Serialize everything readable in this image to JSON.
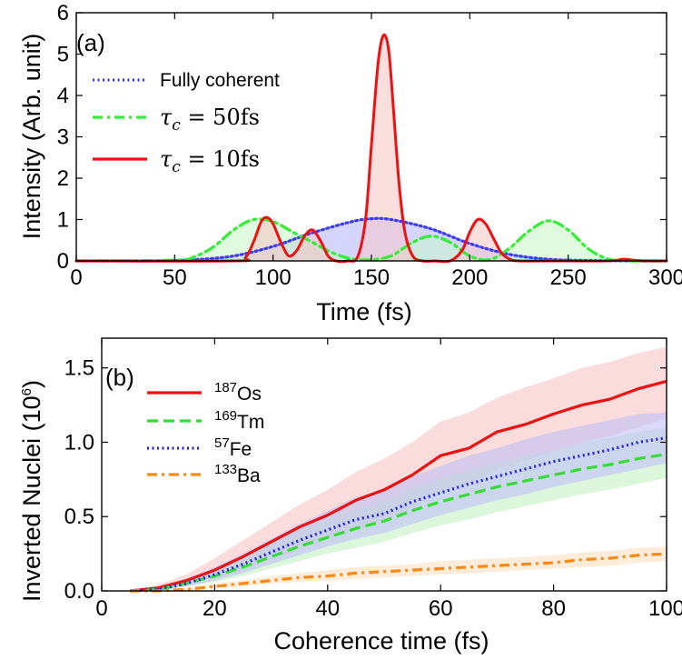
{
  "chart_data": [
    {
      "type": "area",
      "panel_label": "(a)",
      "xlabel": "Time (fs)",
      "ylabel": "Intensity (Arb. unit)",
      "xlim": [
        0,
        300
      ],
      "ylim": [
        0,
        6
      ],
      "xticks": [
        0,
        50,
        100,
        150,
        200,
        250,
        300
      ],
      "yticks": [
        0,
        1,
        2,
        3,
        4,
        5,
        6
      ],
      "legend_position": "top-left",
      "grid": false,
      "series": [
        {
          "name": "Fully coherent",
          "color": "#3b3bff",
          "fill": "#b3b3ff",
          "style": "dotted",
          "x": [
            0,
            20,
            40,
            60,
            80,
            100,
            120,
            140,
            150,
            160,
            180,
            200,
            220,
            240,
            260,
            280,
            300
          ],
          "y": [
            0.0,
            0.0,
            0.0,
            0.03,
            0.12,
            0.35,
            0.68,
            0.95,
            1.02,
            1.0,
            0.78,
            0.42,
            0.16,
            0.04,
            0.01,
            0.0,
            0.0
          ]
        },
        {
          "name": "τc = 50fs",
          "label_symbol": "τ",
          "label_sub": "c",
          "label_rest": " = 50fs",
          "color": "#33ee33",
          "fill": "#c4f5c4",
          "style": "dashdot",
          "x": [
            0,
            50,
            60,
            70,
            80,
            90,
            100,
            110,
            120,
            130,
            140,
            150,
            160,
            170,
            180,
            190,
            200,
            210,
            220,
            230,
            240,
            250,
            260,
            270,
            280,
            300
          ],
          "y": [
            0.0,
            0.02,
            0.1,
            0.35,
            0.75,
            1.0,
            0.95,
            0.7,
            0.45,
            0.2,
            0.05,
            0.03,
            0.12,
            0.42,
            0.6,
            0.45,
            0.12,
            0.03,
            0.3,
            0.72,
            0.97,
            0.75,
            0.3,
            0.05,
            0.0,
            0.0
          ]
        },
        {
          "name": "τc = 10fs",
          "label_symbol": "τ",
          "label_sub": "c",
          "label_rest": " = 10fs",
          "color": "#ee1111",
          "fill": "#f7c4c4",
          "style": "solid",
          "x": [
            0,
            80,
            86,
            90,
            94,
            97,
            100,
            104,
            108,
            112,
            116,
            120,
            124,
            128,
            132,
            138,
            143,
            147,
            150,
            153,
            155,
            157,
            159,
            161,
            164,
            167,
            171,
            176,
            182,
            190,
            196,
            200,
            204,
            208,
            212,
            216,
            220,
            225,
            240,
            270,
            278,
            283,
            290,
            300
          ],
          "y": [
            0.0,
            0.0,
            0.08,
            0.45,
            0.95,
            1.05,
            0.9,
            0.45,
            0.12,
            0.25,
            0.6,
            0.75,
            0.5,
            0.12,
            0.0,
            0.0,
            0.1,
            1.0,
            2.8,
            4.6,
            5.3,
            5.45,
            5.0,
            3.8,
            1.9,
            0.7,
            0.12,
            0.0,
            0.0,
            0.0,
            0.25,
            0.7,
            1.0,
            0.9,
            0.55,
            0.2,
            0.05,
            0.0,
            0.0,
            0.0,
            0.04,
            0.02,
            0.0,
            0.0
          ]
        }
      ]
    },
    {
      "type": "line",
      "panel_label": "(b)",
      "xlabel": "Coherence time (fs)",
      "ylabel_main": "Inverted Nuclei (10",
      "ylabel_sup": "6",
      "ylabel_end": ")",
      "xlim": [
        0,
        100
      ],
      "ylim": [
        0,
        1.7
      ],
      "xticks": [
        0,
        20,
        40,
        60,
        80,
        100
      ],
      "yticks": [
        0.0,
        0.5,
        1.0,
        1.5
      ],
      "ytick_labels": [
        "0.0",
        "0.5",
        "1.0",
        "1.5"
      ],
      "legend_position": "top-left",
      "grid": false,
      "x": [
        5,
        10,
        15,
        20,
        25,
        30,
        35,
        40,
        45,
        50,
        55,
        60,
        65,
        70,
        75,
        80,
        85,
        90,
        95,
        100
      ],
      "series": [
        {
          "name": "187Os",
          "label_sup": "187",
          "label_rest": "Os",
          "color": "#ee1111",
          "fill": "#f7c4c4",
          "style": "solid",
          "values": [
            0.0,
            0.02,
            0.07,
            0.14,
            0.23,
            0.33,
            0.43,
            0.51,
            0.61,
            0.68,
            0.78,
            0.91,
            0.96,
            1.07,
            1.12,
            1.19,
            1.25,
            1.29,
            1.36,
            1.41
          ],
          "band_upper": [
            0.0,
            0.04,
            0.11,
            0.22,
            0.34,
            0.46,
            0.58,
            0.68,
            0.8,
            0.89,
            1.0,
            1.14,
            1.2,
            1.3,
            1.37,
            1.43,
            1.5,
            1.54,
            1.6,
            1.64
          ],
          "band_lower": [
            0.0,
            0.01,
            0.04,
            0.08,
            0.14,
            0.21,
            0.28,
            0.35,
            0.42,
            0.48,
            0.56,
            0.67,
            0.72,
            0.82,
            0.88,
            0.94,
            1.0,
            1.04,
            1.1,
            1.16
          ]
        },
        {
          "name": "169Tm",
          "label_sup": "169",
          "label_rest": "Tm",
          "color": "#33dd33",
          "fill": "#c4f0c4",
          "style": "dashed",
          "values": [
            0.0,
            0.01,
            0.05,
            0.1,
            0.16,
            0.23,
            0.3,
            0.36,
            0.42,
            0.47,
            0.54,
            0.6,
            0.65,
            0.7,
            0.74,
            0.78,
            0.82,
            0.85,
            0.89,
            0.92
          ],
          "band_upper": [
            0.0,
            0.02,
            0.08,
            0.15,
            0.23,
            0.32,
            0.41,
            0.48,
            0.55,
            0.61,
            0.69,
            0.76,
            0.81,
            0.87,
            0.91,
            0.95,
            1.0,
            1.03,
            1.07,
            1.1
          ],
          "band_lower": [
            0.0,
            0.0,
            0.03,
            0.06,
            0.1,
            0.15,
            0.2,
            0.25,
            0.29,
            0.33,
            0.39,
            0.44,
            0.48,
            0.53,
            0.57,
            0.61,
            0.65,
            0.68,
            0.72,
            0.76
          ]
        },
        {
          "name": "57Fe",
          "label_sup": "57",
          "label_rest": "Fe",
          "color": "#2222ee",
          "fill": "#bfbff5",
          "style": "dotted",
          "values": [
            0.0,
            0.01,
            0.05,
            0.11,
            0.18,
            0.26,
            0.34,
            0.41,
            0.48,
            0.52,
            0.6,
            0.66,
            0.72,
            0.77,
            0.82,
            0.87,
            0.91,
            0.95,
            1.0,
            1.03
          ],
          "band_upper": [
            0.0,
            0.02,
            0.08,
            0.16,
            0.25,
            0.35,
            0.45,
            0.54,
            0.63,
            0.68,
            0.77,
            0.84,
            0.91,
            0.96,
            1.02,
            1.07,
            1.11,
            1.15,
            1.19,
            1.2
          ],
          "band_lower": [
            0.0,
            0.0,
            0.03,
            0.07,
            0.12,
            0.18,
            0.24,
            0.3,
            0.35,
            0.39,
            0.45,
            0.51,
            0.56,
            0.61,
            0.65,
            0.7,
            0.74,
            0.78,
            0.82,
            0.86
          ]
        },
        {
          "name": "133Ba",
          "label_sup": "133",
          "label_rest": "Ba",
          "color": "#ff8811",
          "fill": "#fde0c2",
          "style": "dashdot",
          "values": [
            0.0,
            0.0,
            0.01,
            0.03,
            0.05,
            0.07,
            0.09,
            0.1,
            0.12,
            0.13,
            0.14,
            0.15,
            0.16,
            0.17,
            0.18,
            0.19,
            0.21,
            0.22,
            0.24,
            0.25
          ],
          "band_upper": [
            0.0,
            0.01,
            0.02,
            0.05,
            0.07,
            0.1,
            0.12,
            0.14,
            0.16,
            0.17,
            0.18,
            0.2,
            0.21,
            0.22,
            0.23,
            0.24,
            0.26,
            0.27,
            0.29,
            0.3
          ],
          "band_lower": [
            0.0,
            0.0,
            0.0,
            0.02,
            0.03,
            0.05,
            0.06,
            0.07,
            0.08,
            0.09,
            0.1,
            0.11,
            0.12,
            0.13,
            0.14,
            0.15,
            0.16,
            0.17,
            0.19,
            0.2
          ]
        }
      ]
    }
  ]
}
